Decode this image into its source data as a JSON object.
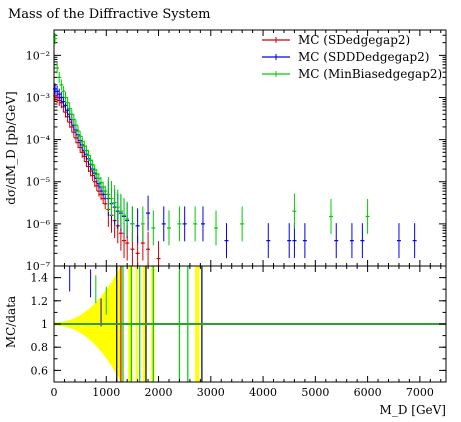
{
  "chart_data": {
    "type": "scatter",
    "title": "Mass of the Diffractive System",
    "xlabel": "M_D [GeV]",
    "ylabel": "dσ/dM_D [pb/GeV]",
    "ratio_ylabel": "MC/data",
    "xlim": [
      0,
      7500
    ],
    "ylim": [
      1e-07,
      0.04
    ],
    "yscale": "log",
    "ratio_ylim": [
      0.5,
      1.5
    ],
    "x_ticks": [
      "0",
      "1000",
      "2000",
      "3000",
      "4000",
      "5000",
      "6000",
      "7000"
    ],
    "y_ticks": [
      "10⁻²",
      "10⁻³",
      "10⁻⁴",
      "10⁻⁵",
      "10⁻⁶",
      "10⁻⁷"
    ],
    "ratio_ticks": [
      "1.4",
      "1.2",
      "1",
      "0.8",
      "0.6"
    ],
    "legend_position": "top-right",
    "colors": {
      "red": "#cc0000",
      "blue": "#0000ee",
      "green": "#00cc00",
      "band": "#ffff00",
      "ref": "#2e9e2e"
    },
    "series": [
      {
        "name": "MC (SDedgegap2)",
        "color": "#cc0000",
        "points": [
          [
            20,
            0.0011
          ],
          [
            60,
            0.001
          ],
          [
            100,
            0.00085
          ],
          [
            140,
            0.00075
          ],
          [
            180,
            0.0006
          ],
          [
            220,
            0.00045
          ],
          [
            260,
            0.00035
          ],
          [
            300,
            0.00026
          ],
          [
            340,
            0.0002
          ],
          [
            380,
            0.00015
          ],
          [
            420,
            0.00011
          ],
          [
            460,
            8.5e-05
          ],
          [
            500,
            6.5e-05
          ],
          [
            540,
            5e-05
          ],
          [
            580,
            4e-05
          ],
          [
            620,
            3e-05
          ],
          [
            660,
            2.3e-05
          ],
          [
            700,
            1.8e-05
          ],
          [
            740,
            1.4e-05
          ],
          [
            780,
            1e-05
          ],
          [
            820,
            8e-06
          ],
          [
            860,
            6e-06
          ],
          [
            900,
            5e-06
          ],
          [
            940,
            4e-06
          ],
          [
            980,
            3e-06
          ],
          [
            1040,
            2.2e-06
          ],
          [
            1100,
            1.6e-06
          ],
          [
            1160,
            1.2e-06
          ],
          [
            1220,
            9e-07
          ],
          [
            1280,
            6e-07
          ],
          [
            1340,
            4e-07
          ],
          [
            1400,
            3.5e-07
          ],
          [
            1500,
            2.5e-07
          ],
          [
            1600,
            2e-07
          ],
          [
            1700,
            3.5e-07
          ],
          [
            1800,
            2.5e-07
          ],
          [
            2000,
            1.5e-07
          ]
        ]
      },
      {
        "name": "MC (SDDDedgegap2)",
        "color": "#0000ee",
        "points": [
          [
            20,
            0.0016
          ],
          [
            60,
            0.0014
          ],
          [
            100,
            0.0012
          ],
          [
            140,
            0.001
          ],
          [
            180,
            0.0008
          ],
          [
            220,
            0.00065
          ],
          [
            260,
            0.0005
          ],
          [
            300,
            0.0004
          ],
          [
            340,
            0.0003
          ],
          [
            380,
            0.00022
          ],
          [
            420,
            0.00017
          ],
          [
            460,
            0.00013
          ],
          [
            500,
            9.5e-05
          ],
          [
            540,
            7.5e-05
          ],
          [
            580,
            5.5e-05
          ],
          [
            620,
            4.5e-05
          ],
          [
            660,
            3.5e-05
          ],
          [
            700,
            2.6e-05
          ],
          [
            740,
            2e-05
          ],
          [
            780,
            1.6e-05
          ],
          [
            820,
            1.2e-05
          ],
          [
            860,
            9e-06
          ],
          [
            900,
            7.5e-06
          ],
          [
            940,
            6e-06
          ],
          [
            980,
            5e-06
          ],
          [
            1040,
            4e-06
          ],
          [
            1100,
            3e-06
          ],
          [
            1160,
            2.5e-06
          ],
          [
            1220,
            2e-06
          ],
          [
            1280,
            1.8e-06
          ],
          [
            1340,
            1.5e-06
          ],
          [
            1400,
            1.2e-06
          ],
          [
            1500,
            1e-06
          ],
          [
            1600,
            9e-07
          ],
          [
            1800,
            1.8e-06
          ],
          [
            2100,
            1e-06
          ],
          [
            2500,
            1e-06
          ],
          [
            2850,
            1e-06
          ],
          [
            3300,
            4e-07
          ],
          [
            4100,
            4e-07
          ],
          [
            4500,
            4e-07
          ],
          [
            4600,
            4e-07
          ],
          [
            4800,
            4e-07
          ],
          [
            5400,
            4e-07
          ],
          [
            5700,
            4e-07
          ],
          [
            5900,
            4e-07
          ],
          [
            6600,
            4e-07
          ],
          [
            6900,
            4e-07
          ]
        ]
      },
      {
        "name": "MC (MinBiasedgegap2)",
        "color": "#00cc00",
        "points": [
          [
            20,
            0.025
          ],
          [
            60,
            0.005
          ],
          [
            100,
            0.003
          ],
          [
            140,
            0.002
          ],
          [
            180,
            0.0014
          ],
          [
            220,
            0.001
          ],
          [
            260,
            0.00075
          ],
          [
            300,
            0.00055
          ],
          [
            340,
            0.0004
          ],
          [
            380,
            0.0003
          ],
          [
            420,
            0.00022
          ],
          [
            460,
            0.00016
          ],
          [
            500,
            0.00012
          ],
          [
            540,
            9e-05
          ],
          [
            580,
            7e-05
          ],
          [
            620,
            5.5e-05
          ],
          [
            660,
            4.2e-05
          ],
          [
            700,
            3.2e-05
          ],
          [
            740,
            2.5e-05
          ],
          [
            780,
            1.9e-05
          ],
          [
            820,
            1.5e-05
          ],
          [
            860,
            1.2e-05
          ],
          [
            900,
            9.5e-06
          ],
          [
            940,
            7.5e-06
          ],
          [
            980,
            6e-06
          ],
          [
            1040,
            5e-06
          ],
          [
            1100,
            4e-06
          ],
          [
            1160,
            3.2e-06
          ],
          [
            1220,
            2.5e-06
          ],
          [
            1280,
            2e-06
          ],
          [
            1340,
            1.6e-06
          ],
          [
            1400,
            1.3e-06
          ],
          [
            1500,
            1e-06
          ],
          [
            1700,
            1e-06
          ],
          [
            1900,
            8e-07
          ],
          [
            2200,
            8e-07
          ],
          [
            2400,
            1e-06
          ],
          [
            2700,
            1e-06
          ],
          [
            3100,
            8e-07
          ],
          [
            3600,
            1e-06
          ],
          [
            4600,
            2e-06
          ],
          [
            5300,
            1.5e-06
          ],
          [
            6000,
            1.5e-06
          ]
        ]
      }
    ]
  }
}
